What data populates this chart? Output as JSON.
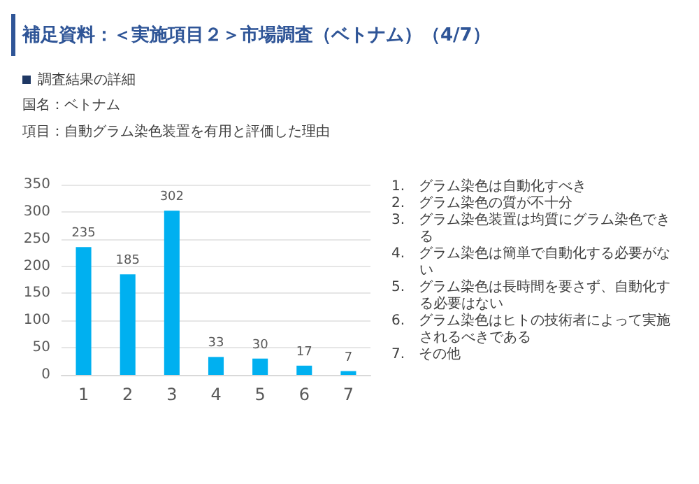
{
  "chart_data": {
    "type": "bar",
    "title": "補足資料：＜実施項目２＞市場調査（ベトナム）（4/7）",
    "subtitle": "調査結果の詳細",
    "annotations": [
      "国名：ベトナム",
      "項目：自動グラム染色装置を有用と評価した理由",
      "1.　グラム染色は自動化すべき",
      "2.　グラム染色の質が不十分",
      "3.　グラム染色装置は均質にグラム染色できる",
      "4.　グラム染色は簡単で自動化する必要がない",
      "5.　グラム染色は長時間を要さず、自動化する必要はない",
      "6.　グラム染色はヒトの技術者によって実施されるべきである",
      "7.　その他"
    ],
    "categories": [
      "1",
      "2",
      "3",
      "4",
      "5",
      "6",
      "7"
    ],
    "values": [
      235,
      185,
      302,
      33,
      30,
      17,
      7
    ],
    "color": "#00b0f0",
    "ylim": [
      0,
      350
    ],
    "yticks": [
      0,
      50,
      100,
      150,
      200,
      250,
      300,
      350
    ],
    "grid": "y",
    "data_labels": true
  }
}
